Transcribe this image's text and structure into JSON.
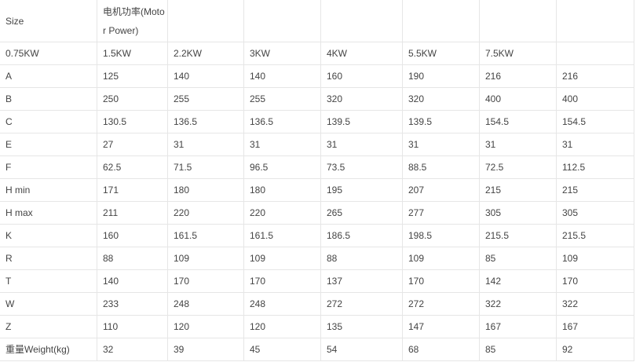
{
  "table": {
    "header": [
      "Size",
      "电机功率(Motor Power)",
      "",
      "",
      "",
      "",
      "",
      ""
    ],
    "rows": [
      [
        "0.75KW",
        "1.5KW",
        "2.2KW",
        "3KW",
        "4KW",
        "5.5KW",
        "7.5KW",
        ""
      ],
      [
        "A",
        "125",
        "140",
        "140",
        "160",
        "190",
        "216",
        "216"
      ],
      [
        "B",
        "250",
        "255",
        "255",
        "320",
        "320",
        "400",
        "400"
      ],
      [
        "C",
        "130.5",
        "136.5",
        "136.5",
        "139.5",
        "139.5",
        "154.5",
        "154.5"
      ],
      [
        "E",
        "27",
        "31",
        "31",
        "31",
        "31",
        "31",
        "31"
      ],
      [
        "F",
        "62.5",
        "71.5",
        "96.5",
        "73.5",
        "88.5",
        "72.5",
        "112.5"
      ],
      [
        "H min",
        "171",
        "180",
        "180",
        "195",
        "207",
        "215",
        "215"
      ],
      [
        "H max",
        "211",
        "220",
        "220",
        "265",
        "277",
        "305",
        "305"
      ],
      [
        "K",
        "160",
        "161.5",
        "161.5",
        "186.5",
        "198.5",
        "215.5",
        "215.5"
      ],
      [
        "R",
        "88",
        "109",
        "109",
        "88",
        "109",
        "85",
        "109"
      ],
      [
        "T",
        "140",
        "170",
        "170",
        "137",
        "170",
        "142",
        "170"
      ],
      [
        "W",
        "233",
        "248",
        "248",
        "272",
        "272",
        "322",
        "322"
      ],
      [
        "Z",
        "110",
        "120",
        "120",
        "135",
        "147",
        "167",
        "167"
      ],
      [
        "重量Weight(kg)",
        "32",
        "39",
        "45",
        "54",
        "68",
        "85",
        "92"
      ]
    ]
  }
}
